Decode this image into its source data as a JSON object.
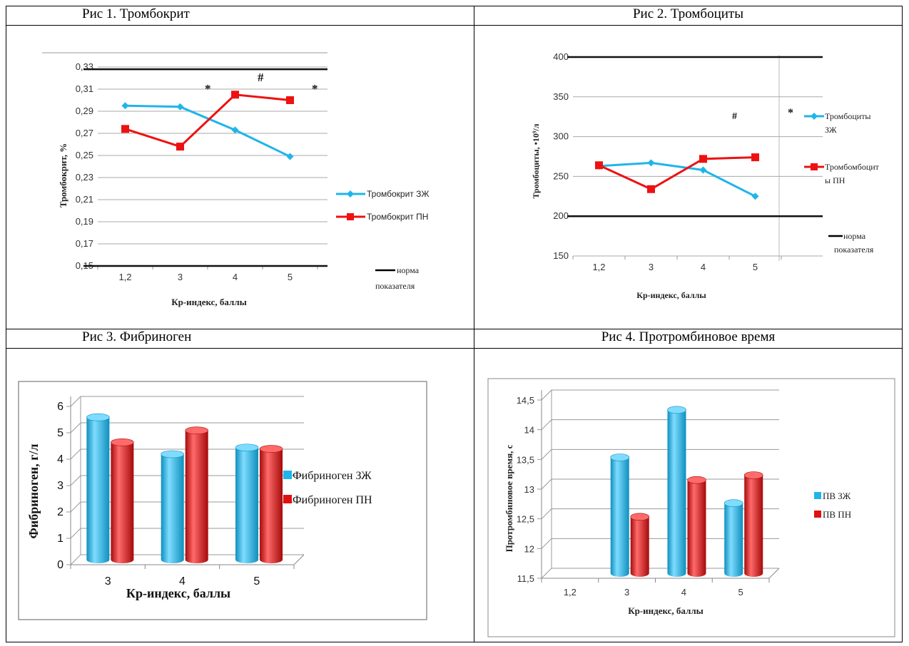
{
  "panels": {
    "p1": {
      "header": "Рис 1. Тромбокрит"
    },
    "p2": {
      "header": "Рис 2. Тромбоциты"
    },
    "p3": {
      "header": "Рис 3. Фибриноген"
    },
    "p4": {
      "header": "Рис 4. Протромбиновое время"
    }
  },
  "chart_data": [
    {
      "type": "line",
      "categories": [
        "1,2",
        "3",
        "4",
        "5"
      ],
      "series": [
        {
          "name": "Тромбокрит ЗЖ",
          "values": [
            0.295,
            0.294,
            0.273,
            0.249
          ],
          "color": "#1fb5ea",
          "marker": "diamond"
        },
        {
          "name": "Тромбокрит ПН",
          "values": [
            0.274,
            0.258,
            0.305,
            0.3
          ],
          "color": "#ee1111",
          "marker": "square"
        }
      ],
      "norm": {
        "name": "норма показателя",
        "values": [
          0.15,
          0.328
        ]
      },
      "ylim": [
        0.15,
        0.33
      ],
      "yticks": [
        "0,15",
        "0,17",
        "0,19",
        "0,21",
        "0,23",
        "0,25",
        "0,27",
        "0,29",
        "0,31",
        "0,33"
      ],
      "xlabel": "Кр-индекс,  баллы",
      "ylabel": "Тромбокрит,  %",
      "annotations": [
        "*",
        "#",
        "*"
      ]
    },
    {
      "type": "line",
      "categories": [
        "1,2",
        "3",
        "4",
        "5"
      ],
      "series": [
        {
          "name": "Тромбоциты ЗЖ",
          "values": [
            263,
            267,
            258,
            225
          ],
          "color": "#1fb5ea",
          "marker": "diamond"
        },
        {
          "name": "Тромбомбоцит ы ПН",
          "values": [
            264,
            234,
            272,
            274
          ],
          "color": "#ee1111",
          "marker": "square"
        }
      ],
      "legend_text": {
        "s1a": "Тромбоциты",
        "s1b": "ЗЖ",
        "s2a": "Тромбомбоцит",
        "s2b": "ы ПН"
      },
      "norm": {
        "name": "норма показателя",
        "values": [
          200,
          400
        ]
      },
      "ylim": [
        150,
        400
      ],
      "yticks": [
        "150",
        "200",
        "250",
        "300",
        "350",
        "400"
      ],
      "xlabel": "Кр-индекс,  баллы",
      "ylabel": "Тромбоциты,  •10⁹/л",
      "annotations": [
        "#",
        "*"
      ]
    },
    {
      "type": "bar",
      "categories": [
        "3",
        "4",
        "5"
      ],
      "series": [
        {
          "name": "Фибриноген ЗЖ",
          "values": [
            5.4,
            4.0,
            4.25
          ],
          "color": "#1fb5ea"
        },
        {
          "name": "Фибриноген ПН",
          "values": [
            4.45,
            4.9,
            4.2
          ],
          "color": "#e01010"
        }
      ],
      "ylim": [
        0,
        6
      ],
      "yticks": [
        "0",
        "1",
        "2",
        "3",
        "4",
        "5",
        "6"
      ],
      "xlabel": "Кр-индекс, баллы",
      "ylabel": "Фибриноген, г/л"
    },
    {
      "type": "bar",
      "categories": [
        "1,2",
        "3",
        "4",
        "5"
      ],
      "series": [
        {
          "name": "ПВ ЗЖ",
          "values": [
            null,
            13.45,
            14.25,
            12.68
          ],
          "color": "#1fb5ea"
        },
        {
          "name": "ПВ ПН",
          "values": [
            null,
            12.45,
            13.07,
            13.15
          ],
          "color": "#e01010"
        }
      ],
      "ylim": [
        11.5,
        14.5
      ],
      "yticks": [
        "11,5",
        "12",
        "12,5",
        "13",
        "13,5",
        "14",
        "14,5"
      ],
      "xlabel": "Кр-индекс, баллы",
      "ylabel": "Протромбиновое время, с"
    }
  ]
}
